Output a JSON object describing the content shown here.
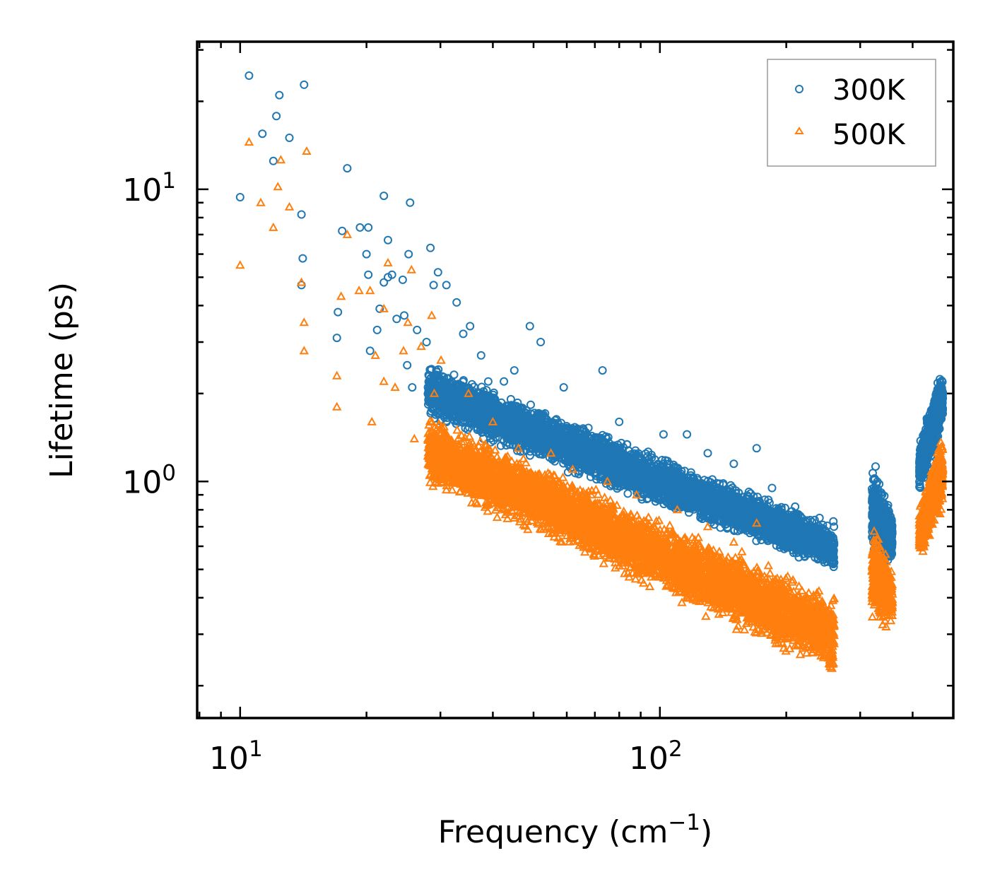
{
  "chart_data": {
    "type": "scatter",
    "title": "",
    "xlabel": "Frequency (cm",
    "xlabel_sup": "−1",
    "xlabel_end": ")",
    "ylabel": "Lifetime (ps)",
    "xscale": "log",
    "yscale": "log",
    "xlim": [
      7.9,
      500
    ],
    "ylim": [
      0.155,
      32
    ],
    "x_ticks": [
      {
        "value": 10,
        "base": "10",
        "exp": "1"
      },
      {
        "value": 100,
        "base": "10",
        "exp": "2"
      }
    ],
    "y_ticks": [
      {
        "value": 1,
        "base": "10",
        "exp": "0"
      },
      {
        "value": 10,
        "base": "10",
        "exp": "1"
      }
    ],
    "legend_position": "top-right",
    "series": [
      {
        "name": "300K",
        "marker": "circle",
        "color": "#1f77b4",
        "points": [
          [
            10.0,
            9.4
          ],
          [
            10.5,
            24.5
          ],
          [
            11.3,
            15.5
          ],
          [
            12.0,
            12.5
          ],
          [
            12.2,
            17.8
          ],
          [
            12.4,
            21.0
          ],
          [
            13.1,
            15.0
          ],
          [
            14.2,
            22.8
          ],
          [
            14.0,
            8.2
          ],
          [
            14.1,
            5.8
          ],
          [
            14.0,
            4.7
          ],
          [
            17.0,
            3.1
          ],
          [
            17.1,
            3.8
          ],
          [
            17.5,
            7.2
          ],
          [
            18.0,
            11.8
          ],
          [
            19.3,
            7.4
          ],
          [
            20.2,
            7.4
          ],
          [
            20.0,
            6.0
          ],
          [
            20.2,
            5.1
          ],
          [
            20.4,
            2.8
          ],
          [
            21.2,
            3.3
          ],
          [
            21.5,
            3.9
          ],
          [
            22.0,
            9.5
          ],
          [
            22.0,
            4.8
          ],
          [
            22.5,
            5.0
          ],
          [
            22.5,
            6.7
          ],
          [
            23.0,
            5.1
          ],
          [
            23.6,
            3.6
          ],
          [
            24.4,
            4.9
          ],
          [
            24.6,
            3.7
          ],
          [
            25.0,
            2.5
          ],
          [
            25.2,
            6.0
          ],
          [
            25.4,
            9.0
          ],
          [
            25.7,
            2.1
          ],
          [
            26.4,
            3.3
          ],
          [
            27.8,
            3.0
          ],
          [
            28.4,
            6.3
          ],
          [
            28.9,
            4.7
          ],
          [
            29.6,
            5.2
          ],
          [
            31.0,
            4.7
          ],
          [
            32.8,
            4.1
          ],
          [
            34.0,
            3.2
          ],
          [
            35.3,
            3.4
          ],
          [
            37.5,
            2.7
          ],
          [
            39.0,
            2.2
          ],
          [
            42.5,
            2.2
          ],
          [
            45.0,
            2.4
          ],
          [
            49.0,
            3.4
          ],
          [
            52.0,
            3.0
          ],
          [
            59.0,
            2.1
          ],
          [
            73.0,
            2.4
          ],
          [
            80.0,
            1.6
          ],
          [
            102.0,
            1.45
          ],
          [
            116.0,
            1.45
          ],
          [
            130.0,
            1.25
          ],
          [
            150.0,
            1.15
          ],
          [
            170.0,
            1.3
          ],
          [
            185.0,
            0.95
          ],
          [
            210.0,
            0.82
          ],
          [
            240.0,
            0.75
          ],
          [
            259.0,
            0.73
          ]
        ]
      },
      {
        "name": "500K",
        "marker": "triangle",
        "color": "#ff7f0e",
        "points": [
          [
            10.0,
            5.5
          ],
          [
            10.5,
            14.5
          ],
          [
            11.2,
            9.0
          ],
          [
            12.0,
            7.4
          ],
          [
            12.3,
            10.2
          ],
          [
            12.5,
            12.6
          ],
          [
            13.1,
            8.7
          ],
          [
            14.0,
            4.8
          ],
          [
            14.2,
            3.5
          ],
          [
            14.2,
            2.8
          ],
          [
            14.4,
            13.5
          ],
          [
            17.0,
            2.3
          ],
          [
            17.0,
            1.8
          ],
          [
            17.4,
            4.3
          ],
          [
            18.0,
            7.0
          ],
          [
            19.2,
            4.5
          ],
          [
            20.4,
            4.5
          ],
          [
            20.6,
            1.6
          ],
          [
            21.0,
            2.7
          ],
          [
            22.0,
            3.9
          ],
          [
            22.5,
            5.6
          ],
          [
            22.0,
            2.2
          ],
          [
            23.4,
            2.1
          ],
          [
            24.5,
            2.8
          ],
          [
            25.1,
            3.5
          ],
          [
            25.6,
            5.3
          ],
          [
            26.0,
            1.4
          ],
          [
            27.0,
            2.9
          ],
          [
            28.6,
            3.7
          ],
          [
            29.0,
            2.0
          ],
          [
            30.1,
            2.6
          ],
          [
            35.0,
            2.0
          ],
          [
            40.0,
            1.6
          ],
          [
            46.0,
            1.3
          ],
          [
            55.0,
            1.25
          ],
          [
            62.0,
            1.1
          ],
          [
            75.0,
            1.0
          ],
          [
            88.0,
            0.9
          ],
          [
            110.0,
            0.8
          ],
          [
            130.0,
            0.7
          ],
          [
            150.0,
            0.62
          ],
          [
            170.0,
            0.72
          ],
          [
            200.0,
            0.42
          ],
          [
            230.0,
            0.35
          ],
          [
            259.0,
            0.32
          ]
        ]
      }
    ],
    "bands": [
      {
        "series": 0,
        "x_start": 28,
        "x_end": 260,
        "lo_start": 1.6,
        "lo_end": 0.48,
        "hi_start": 2.6,
        "hi_end": 0.72,
        "count": 5200
      },
      {
        "series": 1,
        "x_start": 28,
        "x_end": 260,
        "lo_start": 0.95,
        "lo_end": 0.21,
        "hi_start": 1.75,
        "hi_end": 0.42,
        "count": 5200
      },
      {
        "series": 0,
        "x_start": 320,
        "x_end": 358,
        "lo_start": 0.55,
        "lo_end": 0.5,
        "hi_start": 1.25,
        "hi_end": 0.8,
        "count": 500
      },
      {
        "series": 1,
        "x_start": 320,
        "x_end": 358,
        "lo_start": 0.33,
        "lo_end": 0.3,
        "hi_start": 0.75,
        "hi_end": 0.52,
        "count": 500
      },
      {
        "series": 0,
        "x_start": 415,
        "x_end": 472,
        "lo_start": 0.88,
        "lo_end": 1.55,
        "hi_start": 1.4,
        "hi_end": 2.5,
        "count": 800
      },
      {
        "series": 1,
        "x_start": 415,
        "x_end": 472,
        "lo_start": 0.52,
        "lo_end": 0.8,
        "hi_start": 0.85,
        "hi_end": 1.5,
        "count": 800
      }
    ]
  }
}
